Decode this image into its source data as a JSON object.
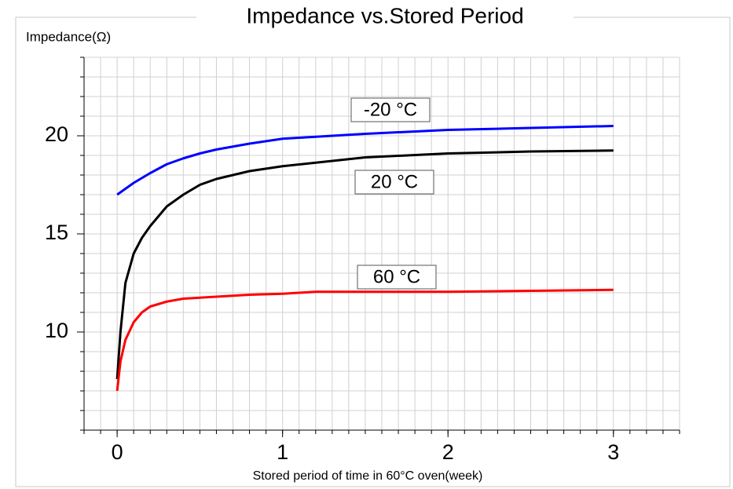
{
  "chart_data": {
    "type": "line",
    "title": "Impedance vs.Stored Period",
    "ylabel": "Impedance(Ω)",
    "xlabel": "Stored period of time in 60°C oven(week)",
    "xlim": [
      -0.2,
      3.4
    ],
    "ylim": [
      5,
      24
    ],
    "xticks": [
      0,
      1,
      2,
      3
    ],
    "yticks": [
      10,
      15,
      20
    ],
    "x_minor_step": 0.1,
    "y_minor_step": 1,
    "grid": true,
    "series": [
      {
        "name": "-20 °C",
        "color": "#0000ff",
        "x": [
          0,
          0.1,
          0.2,
          0.3,
          0.4,
          0.5,
          0.6,
          0.8,
          1.0,
          1.5,
          2.0,
          2.5,
          3.0
        ],
        "values": [
          17.0,
          17.6,
          18.1,
          18.55,
          18.85,
          19.1,
          19.3,
          19.6,
          19.85,
          20.1,
          20.3,
          20.4,
          20.5
        ]
      },
      {
        "name": "20 °C",
        "color": "#000000",
        "x": [
          0,
          0.02,
          0.05,
          0.1,
          0.15,
          0.2,
          0.3,
          0.4,
          0.5,
          0.6,
          0.8,
          1.0,
          1.5,
          2.0,
          2.5,
          3.0
        ],
        "values": [
          7.6,
          10.0,
          12.5,
          14.0,
          14.8,
          15.4,
          16.4,
          17.0,
          17.5,
          17.8,
          18.2,
          18.45,
          18.9,
          19.1,
          19.2,
          19.25
        ]
      },
      {
        "name": "60 °C",
        "color": "#ff0000",
        "x": [
          0,
          0.02,
          0.05,
          0.1,
          0.15,
          0.2,
          0.3,
          0.4,
          0.6,
          0.8,
          1.0,
          1.2,
          2.0,
          3.0
        ],
        "values": [
          7.0,
          8.5,
          9.6,
          10.5,
          11.0,
          11.3,
          11.55,
          11.7,
          11.8,
          11.9,
          11.95,
          12.05,
          12.05,
          12.15
        ]
      }
    ]
  }
}
